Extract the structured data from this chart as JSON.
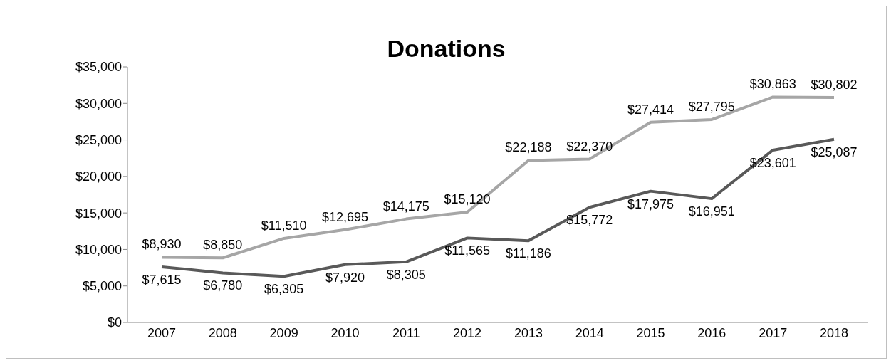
{
  "chart_data": {
    "type": "line",
    "title": "Donations",
    "categories": [
      "2007",
      "2008",
      "2009",
      "2010",
      "2011",
      "2012",
      "2013",
      "2014",
      "2015",
      "2016",
      "2017",
      "2018"
    ],
    "series": [
      {
        "color": "#a6a6a6",
        "values": [
          8930,
          8850,
          11510,
          12695,
          14175,
          15120,
          22188,
          22370,
          27414,
          27795,
          30863,
          30802
        ],
        "value_labels": [
          "$8,930",
          "$8,850",
          "$11,510",
          "$12,695",
          "$14,175",
          "$15,120",
          "$22,188",
          "$22,370",
          "$27,414",
          "$27,795",
          "$30,863",
          "$30,802"
        ]
      },
      {
        "color": "#595959",
        "values": [
          7615,
          6780,
          6305,
          7920,
          8305,
          11565,
          11186,
          15772,
          17975,
          16951,
          23601,
          25087
        ],
        "value_labels": [
          "$7,615",
          "$6,780",
          "$6,305",
          "$7,920",
          "$8,305",
          "$11,565",
          "$11,186",
          "$15,772",
          "$17,975",
          "$16,951",
          "$23,601",
          "$25,087"
        ]
      }
    ],
    "ylim": [
      0,
      35000
    ],
    "yticks": [
      {
        "value": 0,
        "label": "$0"
      },
      {
        "value": 5000,
        "label": "$5,000"
      },
      {
        "value": 10000,
        "label": "$10,000"
      },
      {
        "value": 15000,
        "label": "$15,000"
      },
      {
        "value": 20000,
        "label": "$20,000"
      },
      {
        "value": 25000,
        "label": "$25,000"
      },
      {
        "value": 30000,
        "label": "$30,000"
      },
      {
        "value": 35000,
        "label": "$35,000"
      }
    ]
  }
}
